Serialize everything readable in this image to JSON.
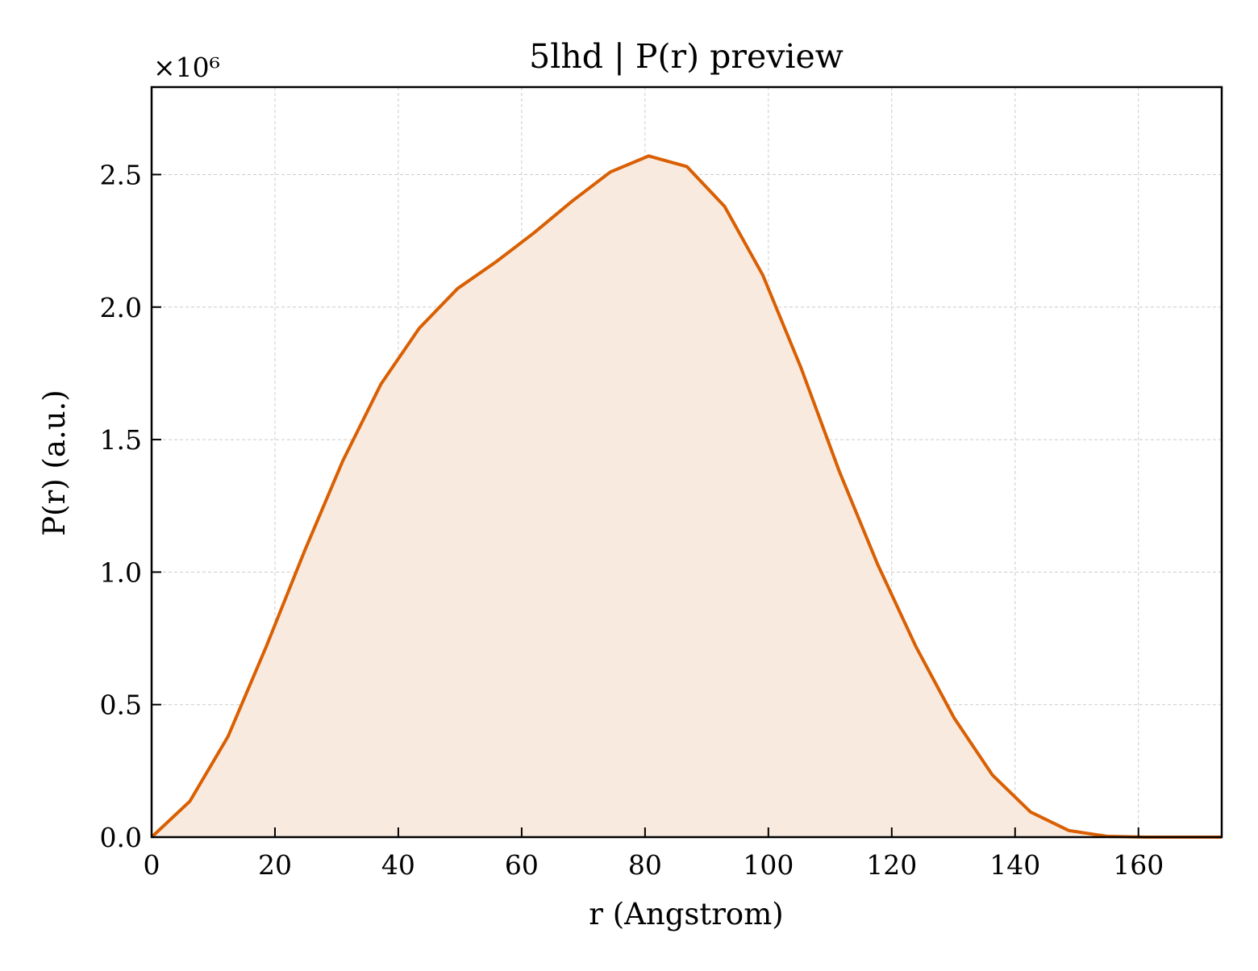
{
  "chart_data": {
    "type": "area",
    "title": "5lhd | P(r) preview",
    "xlabel": "r (Angstrom)",
    "ylabel": "P(r) (a.u.)",
    "y_scale_label": "×10⁶",
    "y_multiplier": 1000000,
    "xlim": [
      0,
      173.5
    ],
    "ylim": [
      0,
      2.83
    ],
    "x_ticks": [
      0,
      20,
      40,
      60,
      80,
      100,
      120,
      140,
      160
    ],
    "x_tick_labels": [
      "0",
      "20",
      "40",
      "60",
      "80",
      "100",
      "120",
      "140",
      "160"
    ],
    "y_ticks": [
      0.0,
      0.5,
      1.0,
      1.5,
      2.0,
      2.5
    ],
    "y_tick_labels": [
      "0.0",
      "0.5",
      "1.0",
      "1.5",
      "2.0",
      "2.5"
    ],
    "grid": true,
    "legend": "none",
    "line_color": "#d95f02",
    "fill_color": "#f9eadf",
    "series": [
      {
        "x": [
          0,
          6.2,
          12.4,
          18.6,
          24.8,
          31.0,
          37.2,
          43.4,
          49.6,
          55.8,
          62.0,
          68.2,
          74.4,
          80.6,
          86.8,
          92.9,
          99.1,
          105.3,
          111.5,
          117.7,
          123.9,
          130.1,
          136.3,
          142.5,
          148.7,
          154.9,
          161.1,
          167.3,
          173.5
        ],
        "y": [
          0.0,
          0.135,
          0.38,
          0.72,
          1.08,
          1.42,
          1.71,
          1.92,
          2.07,
          2.17,
          2.28,
          2.4,
          2.51,
          2.57,
          2.53,
          2.38,
          2.12,
          1.77,
          1.38,
          1.03,
          0.72,
          0.45,
          0.235,
          0.095,
          0.025,
          0.003,
          0.0,
          0.0,
          0.0
        ]
      }
    ]
  }
}
